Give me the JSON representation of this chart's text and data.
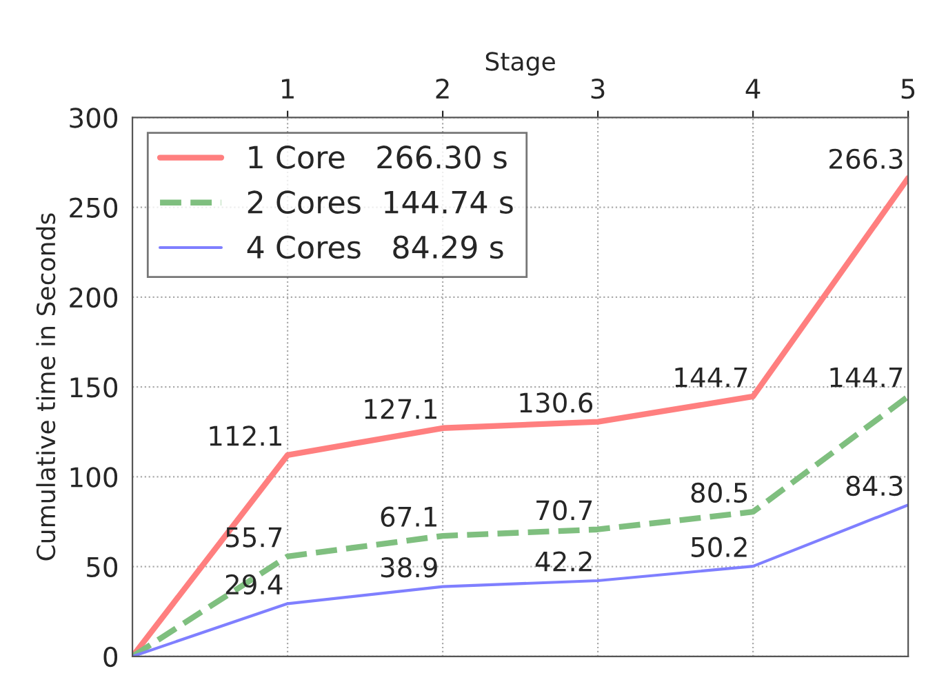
{
  "chart_data": {
    "type": "line",
    "xlabel": "Stage",
    "ylabel": "Cumulative time in Seconds",
    "x": [
      0,
      1,
      2,
      3,
      4,
      5
    ],
    "series": [
      {
        "name": "1 Core   266.30 s",
        "color": "#ff7f7f",
        "line_style": "solid",
        "values": [
          0,
          112.1,
          127.1,
          130.6,
          144.7,
          266.3
        ],
        "value_labels": [
          null,
          "112.1",
          "127.1",
          "130.6",
          "144.7",
          "266.3"
        ]
      },
      {
        "name": "2 Cores  144.74 s",
        "color": "#7fbf7f",
        "line_style": "dashed",
        "values": [
          0,
          55.7,
          67.1,
          70.7,
          80.5,
          144.7
        ],
        "value_labels": [
          null,
          "55.7",
          "67.1",
          "70.7",
          "80.5",
          "144.7"
        ]
      },
      {
        "name": "4 Cores   84.29 s",
        "color": "#7f7fff",
        "line_style": "solid",
        "values": [
          0,
          29.4,
          38.9,
          42.2,
          50.2,
          84.3
        ],
        "value_labels": [
          null,
          "29.4",
          "38.9",
          "42.2",
          "50.2",
          "84.3"
        ]
      }
    ],
    "xlim": [
      0,
      5
    ],
    "xticks": [
      1,
      2,
      3,
      4,
      5
    ],
    "ylim": [
      0,
      300
    ],
    "yticks": [
      0,
      50,
      100,
      150,
      200,
      250,
      300
    ],
    "grid": true,
    "legend": "top left",
    "marker": "none"
  }
}
